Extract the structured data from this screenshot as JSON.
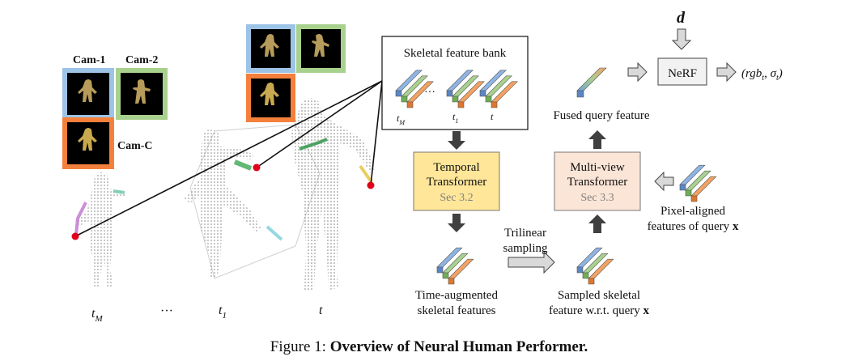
{
  "cameras": {
    "cam1": "Cam-1",
    "cam2": "Cam-2",
    "camC": "Cam-C",
    "colors": {
      "cam1": "#4f8fd9",
      "cam2": "#54b84a",
      "camC": "#ef7a34",
      "frame_blue": "#9dc3e6",
      "frame_green": "#a9d18e",
      "frame_orange": "#f4803c"
    }
  },
  "timeline": {
    "tM_base": "t",
    "tM_sub": "M",
    "dots": "···",
    "t1_base": "t",
    "t1_sub": "1",
    "t": "t"
  },
  "feature_bank": {
    "title": "Skeletal feature bank",
    "ellipsis": "···",
    "tM_base": "t",
    "tM_sub": "M",
    "t1_base": "t",
    "t1_sub": "1",
    "t": "t"
  },
  "temporal_transformer": {
    "line1": "Temporal",
    "line2": "Transformer",
    "sec": "Sec 3.2",
    "fill": "#ffe699"
  },
  "multiview_transformer": {
    "line1": "Multi-view",
    "line2": "Transformer",
    "sec": "Sec 3.3",
    "fill": "#fbe5d6"
  },
  "nerf": {
    "label": "NeRF",
    "input": "d",
    "output": "(rgb",
    "output_sub1": "t",
    "output_mid": ", σ",
    "output_sub2": "t",
    "output_end": ")"
  },
  "labels": {
    "fused_query": "Fused query feature",
    "pixel_aligned_1": "Pixel-aligned",
    "pixel_aligned_2": "features of query",
    "pixel_aligned_x": "x",
    "trilinear_1": "Trilinear",
    "trilinear_2": "sampling",
    "time_aug_1": "Time-augmented",
    "time_aug_2": "skeletal features",
    "sampled_1": "Sampled skeletal",
    "sampled_2": "feature w.r.t. query",
    "sampled_x": "x"
  },
  "caption": {
    "prefix": "Figure 1: ",
    "bold": "Overview of Neural Human Performer."
  },
  "colors": {
    "feature_blue": "#8fb4e3",
    "feature_green": "#a9d18e",
    "feature_orange": "#f4a261",
    "arrow_grey": "#bfbfbf",
    "arrow_dark": "#404040",
    "query_point": "#e0001b"
  }
}
